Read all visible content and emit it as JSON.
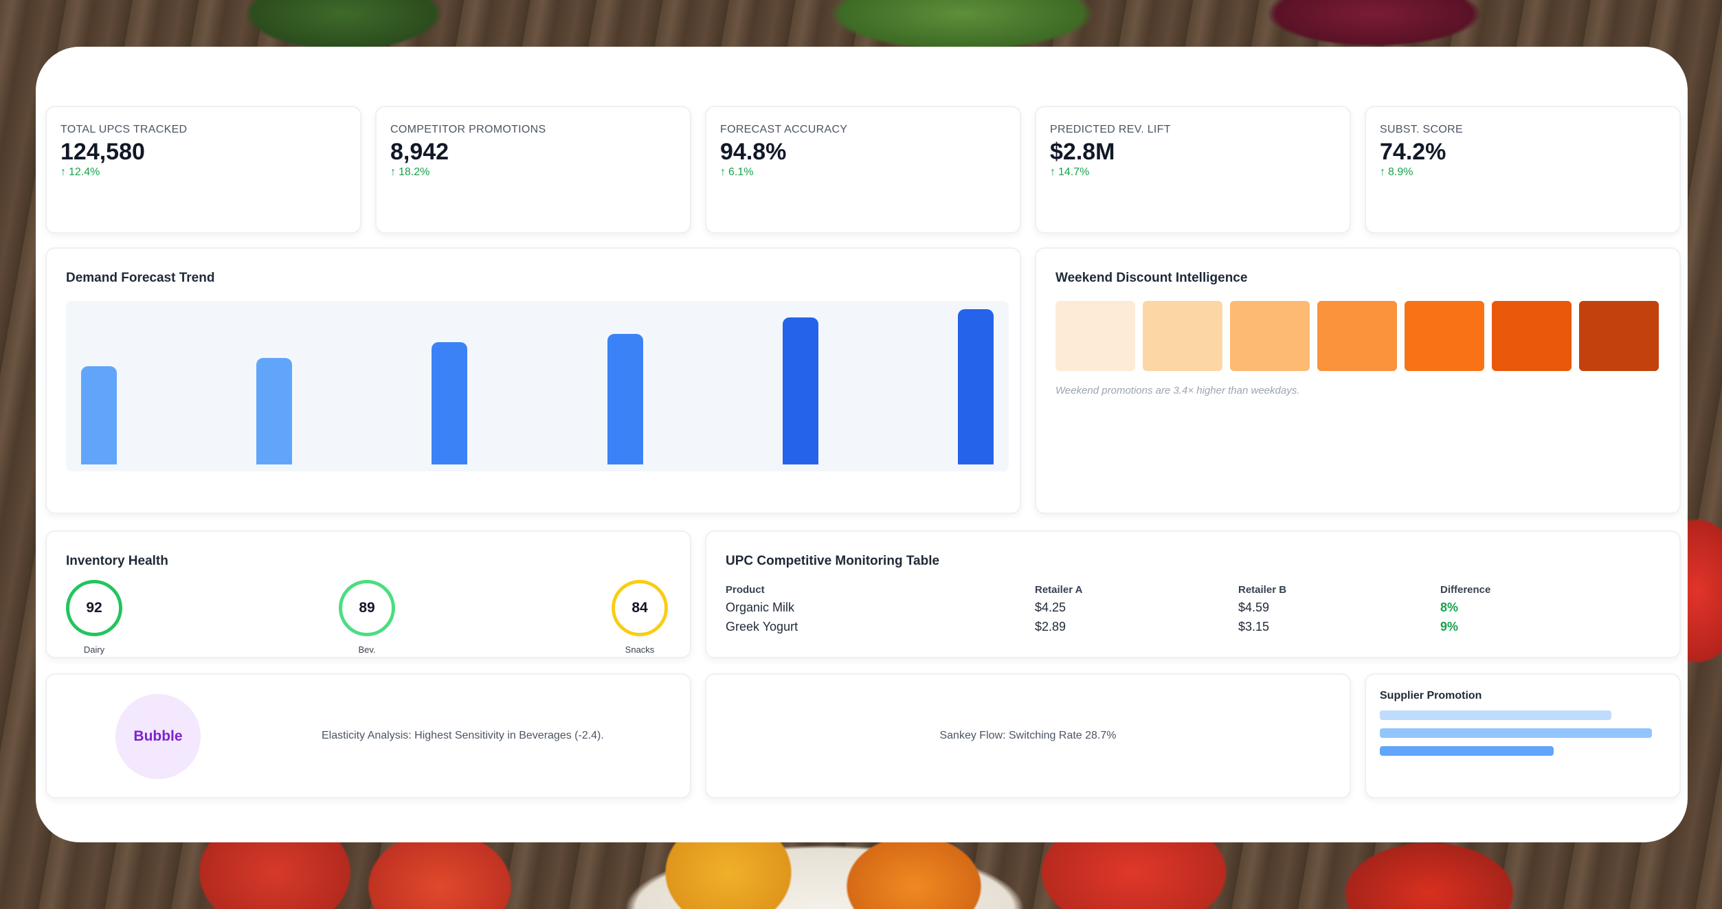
{
  "kpis": [
    {
      "label": "TOTAL UPCS TRACKED",
      "value": "124,580",
      "delta": "12.4%"
    },
    {
      "label": "COMPETITOR PROMOTIONS",
      "value": "8,942",
      "delta": "18.2%"
    },
    {
      "label": "FORECAST ACCURACY",
      "value": "94.8%",
      "delta": "6.1%"
    },
    {
      "label": "PREDICTED REV. LIFT",
      "value": "$2.8M",
      "delta": "14.7%"
    },
    {
      "label": "SUBST. SCORE",
      "value": "74.2%",
      "delta": "8.9%"
    }
  ],
  "demand": {
    "title": "Demand Forecast Trend"
  },
  "chart_data": {
    "type": "bar",
    "title": "Demand Forecast Trend",
    "values": [
      60,
      65,
      75,
      80,
      90,
      95
    ],
    "ylim": [
      0,
      100
    ],
    "colors": [
      "#60a5fa",
      "#60a5fa",
      "#3b82f6",
      "#3b82f6",
      "#2563eb",
      "#2563eb"
    ],
    "grid": false
  },
  "weekend": {
    "title": "Weekend Discount Intelligence",
    "cells": [
      "#feebd6",
      "#fdd6a6",
      "#fdba72",
      "#fb923c",
      "#f97316",
      "#ea580c",
      "#c2410c"
    ],
    "note": "Weekend promotions are 3.4× higher than weekdays."
  },
  "inventory": {
    "title": "Inventory Health",
    "gauges": [
      {
        "value": "92",
        "label": "Dairy",
        "color": "#22c55e"
      },
      {
        "value": "89",
        "label": "Bev.",
        "color": "#4ade80"
      },
      {
        "value": "84",
        "label": "Snacks",
        "color": "#facc15"
      }
    ]
  },
  "upc_table": {
    "title": "UPC Competitive Monitoring Table",
    "headers": [
      "Product",
      "Retailer A",
      "Retailer B",
      "Difference"
    ],
    "rows": [
      [
        "Organic Milk",
        "$4.25",
        "$4.59",
        "8%"
      ],
      [
        "Greek Yogurt",
        "$2.89",
        "$3.15",
        "9%"
      ]
    ]
  },
  "elasticity": {
    "bubble_label": "Bubble",
    "text": "Elasticity Analysis: Highest Sensitivity in Beverages (-2.4)."
  },
  "sankey": {
    "text": "Sankey Flow: Switching Rate 28.7%"
  },
  "supplier": {
    "title": "Supplier Promotion",
    "bars": [
      {
        "value": 0.85,
        "color": "#bfdbfe"
      },
      {
        "value": 1.0,
        "color": "#93c5fd"
      },
      {
        "value": 0.64,
        "color": "#60a5fa"
      }
    ]
  }
}
